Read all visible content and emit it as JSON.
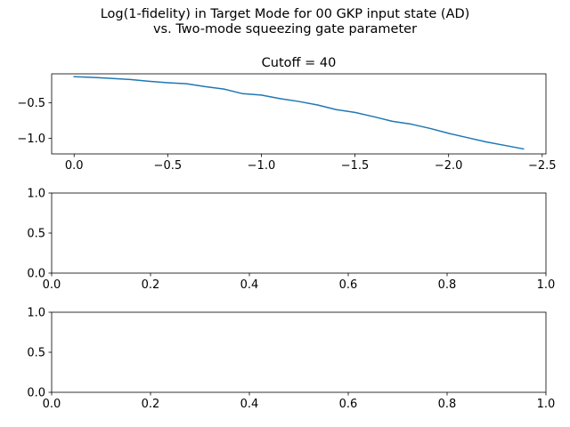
{
  "figure": {
    "suptitle_line1": "Log(1-fidelity) in Target Mode for 00 GKP input state (AD)",
    "suptitle_line2": "vs. Two-mode squeezing gate parameter"
  },
  "chart_data": [
    {
      "type": "line",
      "title": "Cutoff = 40",
      "xlabel": "",
      "ylabel": "",
      "xlim": [
        0.12,
        -2.52
      ],
      "ylim": [
        -1.22,
        -0.09
      ],
      "xticks": [
        0.0,
        -0.5,
        -1.0,
        -1.5,
        -2.0,
        -2.5
      ],
      "xtick_labels": [
        "0.0",
        "−0.5",
        "−1.0",
        "−1.5",
        "−2.0",
        "−2.5"
      ],
      "yticks": [
        -0.5,
        -1.0
      ],
      "ytick_labels": [
        "−0.5",
        "−1.0"
      ],
      "grid": false,
      "line_color": "#1f77b4",
      "series": [
        {
          "x": [
            0.0,
            -0.1,
            -0.2,
            -0.3,
            -0.4,
            -0.5,
            -0.6,
            -0.7,
            -0.8,
            -0.9,
            -1.0,
            -1.1,
            -1.2,
            -1.3,
            -1.4,
            -1.5,
            -1.6,
            -1.7,
            -1.8,
            -1.9,
            -2.0,
            -2.1,
            -2.2,
            -2.3,
            -2.4
          ],
          "y": [
            -0.13,
            -0.14,
            -0.155,
            -0.17,
            -0.195,
            -0.215,
            -0.23,
            -0.27,
            -0.305,
            -0.37,
            -0.39,
            -0.44,
            -0.48,
            -0.53,
            -0.595,
            -0.635,
            -0.695,
            -0.76,
            -0.8,
            -0.86,
            -0.93,
            -0.99,
            -1.05,
            -1.1,
            -1.15
          ]
        }
      ]
    },
    {
      "type": "line",
      "title": "",
      "xlim": [
        0.0,
        1.0
      ],
      "ylim": [
        0.0,
        1.0
      ],
      "xticks": [
        0.0,
        0.2,
        0.4,
        0.6,
        0.8,
        1.0
      ],
      "xtick_labels": [
        "0.0",
        "0.2",
        "0.4",
        "0.6",
        "0.8",
        "1.0"
      ],
      "yticks": [
        0.0,
        0.5,
        1.0
      ],
      "ytick_labels": [
        "0.0",
        "0.5",
        "1.0"
      ],
      "grid": false,
      "series": []
    },
    {
      "type": "line",
      "title": "",
      "xlim": [
        0.0,
        1.0
      ],
      "ylim": [
        0.0,
        1.0
      ],
      "xticks": [
        0.0,
        0.2,
        0.4,
        0.6,
        0.8,
        1.0
      ],
      "xtick_labels": [
        "0.0",
        "0.2",
        "0.4",
        "0.6",
        "0.8",
        "1.0"
      ],
      "yticks": [
        0.0,
        0.5,
        1.0
      ],
      "ytick_labels": [
        "0.0",
        "0.5",
        "1.0"
      ],
      "grid": false,
      "series": []
    }
  ]
}
